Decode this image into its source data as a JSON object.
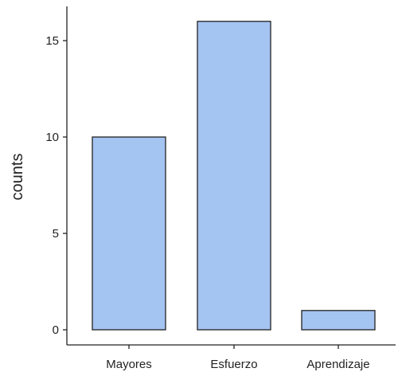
{
  "chart_data": {
    "type": "bar",
    "title": "",
    "xlabel": "",
    "ylabel": "counts",
    "categories": [
      "Mayores",
      "Esfuerzo",
      "Aprendizaje"
    ],
    "values": [
      10,
      16,
      1
    ],
    "ylim": [
      0,
      16
    ],
    "yticks": [
      0,
      5,
      10,
      15
    ],
    "grid": false,
    "legend": "none",
    "colors": {
      "bar_fill": "#a4c4f2",
      "bar_stroke": "#222222",
      "axis": "#222222"
    }
  }
}
